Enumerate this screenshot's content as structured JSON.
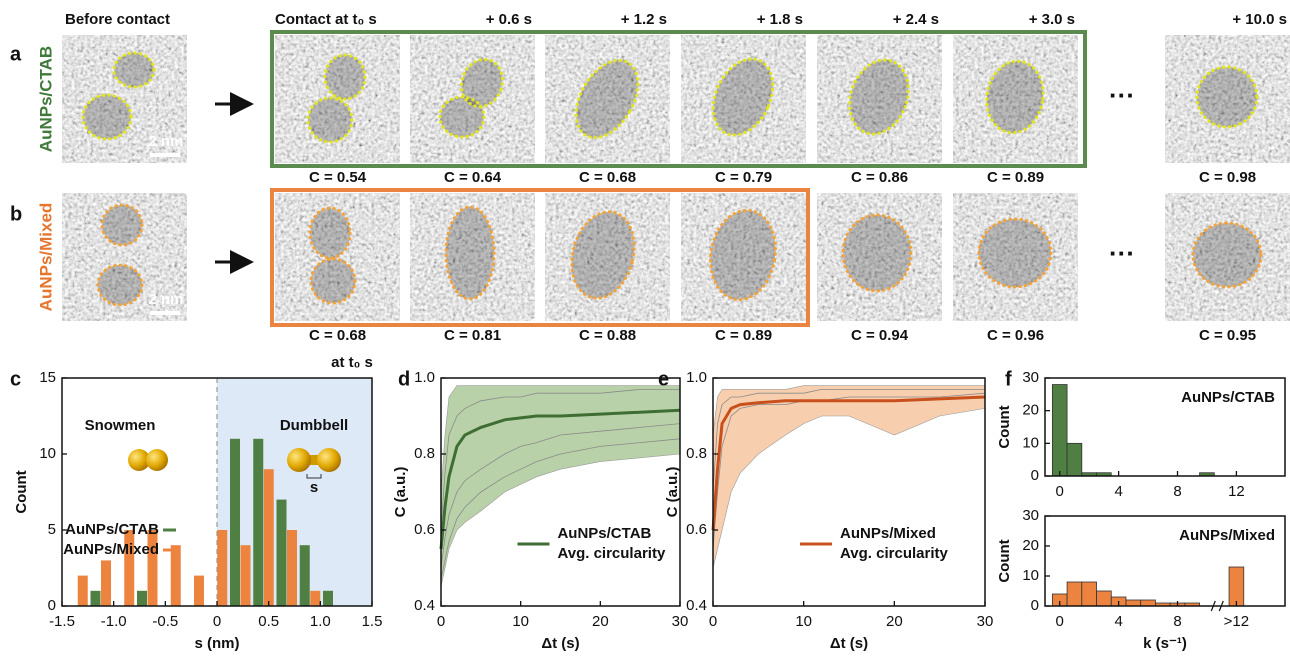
{
  "panel_labels": [
    "a",
    "b",
    "c",
    "d",
    "e",
    "f"
  ],
  "micrographs": {
    "header": {
      "before": "Before contact",
      "contact": "Contact at t₀ s",
      "times": [
        "+ 0.6 s",
        "+ 1.2 s",
        "+ 1.8 s",
        "+ 2.4 s",
        "+ 3.0 s",
        "+ 10.0 s"
      ]
    },
    "rows": [
      {
        "label": "AuNPs/CTAB",
        "scale_bar": "2 nm",
        "ellipsis": "···",
        "circularity": [
          "C = 0.54",
          "C = 0.64",
          "C = 0.68",
          "C = 0.79",
          "C = 0.86",
          "C = 0.89",
          "C = 0.98"
        ]
      },
      {
        "label": "AuNPs/Mixed",
        "scale_bar": "2 nm",
        "ellipsis": "···",
        "circularity": [
          "C = 0.68",
          "C = 0.81",
          "C = 0.88",
          "C = 0.89",
          "C = 0.94",
          "C = 0.96",
          "C = 0.95"
        ]
      }
    ]
  },
  "chart_data": [
    {
      "type": "bar",
      "x_label": "s (nm)",
      "y_label": "Count",
      "annotations": {
        "left": "Snowmen",
        "right": "Dumbbell",
        "top": "at t₀ s",
        "marker": "s"
      },
      "shaded_xrange": [
        0,
        1.5
      ],
      "x": [
        -1.35,
        -1.125,
        -0.9,
        -0.675,
        -0.45,
        -0.225,
        0,
        0.225,
        0.45,
        0.675,
        0.9,
        1.125
      ],
      "series": [
        {
          "name": "AuNPs/CTAB",
          "color": "#4f7f43",
          "values": [
            0,
            1,
            0,
            1,
            0,
            0,
            0,
            11,
            11,
            7,
            4,
            1
          ]
        },
        {
          "name": "AuNPs/Mixed",
          "color": "#ec8440",
          "values": [
            2,
            3,
            5,
            5,
            4,
            2,
            5,
            4,
            9,
            5,
            1,
            0
          ]
        }
      ],
      "xlim": [
        -1.5,
        1.5
      ],
      "xticks": [
        -1.5,
        {
          "value": -1,
          "label": "-1.0"
        },
        -0.5,
        0,
        0.5,
        {
          "value": 1,
          "label": "1.0"
        },
        1.5
      ],
      "ylim": [
        0,
        15
      ],
      "yticks": [
        0,
        5,
        10,
        15
      ]
    },
    {
      "type": "line",
      "x_label": "Δt (s)",
      "y_label": "C (a.u.)",
      "x": [
        0,
        0.5,
        1,
        2,
        3,
        5,
        8,
        10,
        12,
        15,
        20,
        25,
        30
      ],
      "series": [
        {
          "name": "AuNPs/CTAB",
          "description": "Avg. circularity",
          "color": "#3f6e35",
          "values": [
            0.55,
            0.66,
            0.74,
            0.82,
            0.85,
            0.87,
            0.89,
            0.895,
            0.9,
            0.9,
            0.905,
            0.91,
            0.915
          ]
        }
      ],
      "band": {
        "color": "#b9d1a8",
        "lower": [
          0.45,
          0.5,
          0.55,
          0.6,
          0.62,
          0.65,
          0.7,
          0.72,
          0.74,
          0.76,
          0.78,
          0.79,
          0.8
        ],
        "upper": [
          0.7,
          0.85,
          0.95,
          0.98,
          0.98,
          0.98,
          0.98,
          0.98,
          0.98,
          0.98,
          0.98,
          0.98,
          0.98
        ]
      },
      "trace_color": "#8a8a8a",
      "traces": [
        [
          0.5,
          0.58,
          0.64,
          0.7,
          0.73,
          0.76,
          0.8,
          0.82,
          0.83,
          0.85,
          0.86,
          0.87,
          0.88
        ],
        [
          0.6,
          0.75,
          0.85,
          0.9,
          0.92,
          0.94,
          0.95,
          0.95,
          0.96,
          0.96,
          0.96,
          0.97,
          0.97
        ],
        [
          0.47,
          0.52,
          0.57,
          0.63,
          0.66,
          0.7,
          0.74,
          0.76,
          0.78,
          0.8,
          0.82,
          0.83,
          0.84
        ]
      ],
      "xlim": [
        0,
        30
      ],
      "xticks": [
        0,
        10,
        20,
        30
      ],
      "ylim": [
        0.4,
        1
      ],
      "yticks": [
        0.4,
        0.6,
        0.8,
        {
          "value": 1,
          "label": "1.0"
        }
      ]
    },
    {
      "type": "line",
      "x_label": "Δt (s)",
      "y_label": "C (a.u.)",
      "x": [
        0,
        0.5,
        1,
        2,
        3,
        5,
        8,
        10,
        12,
        15,
        20,
        25,
        30
      ],
      "series": [
        {
          "name": "AuNPs/Mixed",
          "description": "Avg. circularity",
          "color": "#c8501c",
          "values": [
            0.6,
            0.76,
            0.88,
            0.92,
            0.93,
            0.935,
            0.94,
            0.94,
            0.94,
            0.94,
            0.94,
            0.945,
            0.95
          ]
        }
      ],
      "band": {
        "color": "#f8cfae",
        "lower": [
          0.5,
          0.55,
          0.6,
          0.7,
          0.75,
          0.8,
          0.85,
          0.88,
          0.9,
          0.9,
          0.85,
          0.9,
          0.92
        ],
        "upper": [
          0.85,
          0.95,
          0.97,
          0.97,
          0.97,
          0.97,
          0.97,
          0.98,
          0.98,
          0.98,
          0.98,
          0.98,
          0.98
        ]
      },
      "trace_color": "#8a8a8a",
      "traces": [
        [
          0.55,
          0.7,
          0.82,
          0.9,
          0.92,
          0.93,
          0.93,
          0.94,
          0.94,
          0.95,
          0.95,
          0.95,
          0.96
        ],
        [
          0.7,
          0.88,
          0.93,
          0.95,
          0.95,
          0.96,
          0.96,
          0.96,
          0.97,
          0.97,
          0.97,
          0.97,
          0.97
        ]
      ],
      "xlim": [
        0,
        30
      ],
      "xticks": [
        0,
        10,
        20,
        30
      ],
      "ylim": [
        0.4,
        1
      ],
      "yticks": [
        0.4,
        0.6,
        0.8,
        {
          "value": 1,
          "label": "1.0"
        }
      ]
    },
    {
      "type": "histogram",
      "y_label": "Count",
      "annotation": "AuNPs/CTAB",
      "color": "#4f7f43",
      "bins": [
        -0.5,
        0.5,
        1.5,
        2.5,
        3.5,
        4.5,
        5.5,
        6.5,
        7.5,
        8.5,
        9.5,
        10.5
      ],
      "values": [
        28,
        10,
        1,
        1,
        0,
        0,
        0,
        0,
        0,
        0,
        1
      ],
      "xlim": [
        -1,
        15.3
      ],
      "xticks": [
        0,
        4,
        8,
        12
      ],
      "ylim": [
        0,
        30
      ],
      "yticks": [
        0,
        10,
        20,
        30
      ]
    },
    {
      "type": "histogram",
      "x_label": "k (s⁻¹)",
      "y_label": "Count",
      "annotation": "AuNPs/Mixed",
      "color": "#ec8440",
      "bins": [
        -0.5,
        0.5,
        1.5,
        2.5,
        3.5,
        4.5,
        5.5,
        6.5,
        7.5,
        8.5,
        9.5,
        11.5,
        12.5
      ],
      "values": [
        4,
        8,
        8,
        5,
        3,
        2,
        2,
        1,
        1,
        1,
        0,
        13
      ],
      "xlim": [
        -1,
        15.3
      ],
      "xticks": [
        0,
        4,
        8,
        {
          "value": 12,
          "label": ">12"
        }
      ],
      "ylim": [
        0,
        30
      ],
      "yticks": [
        0,
        10,
        20,
        30
      ]
    }
  ]
}
